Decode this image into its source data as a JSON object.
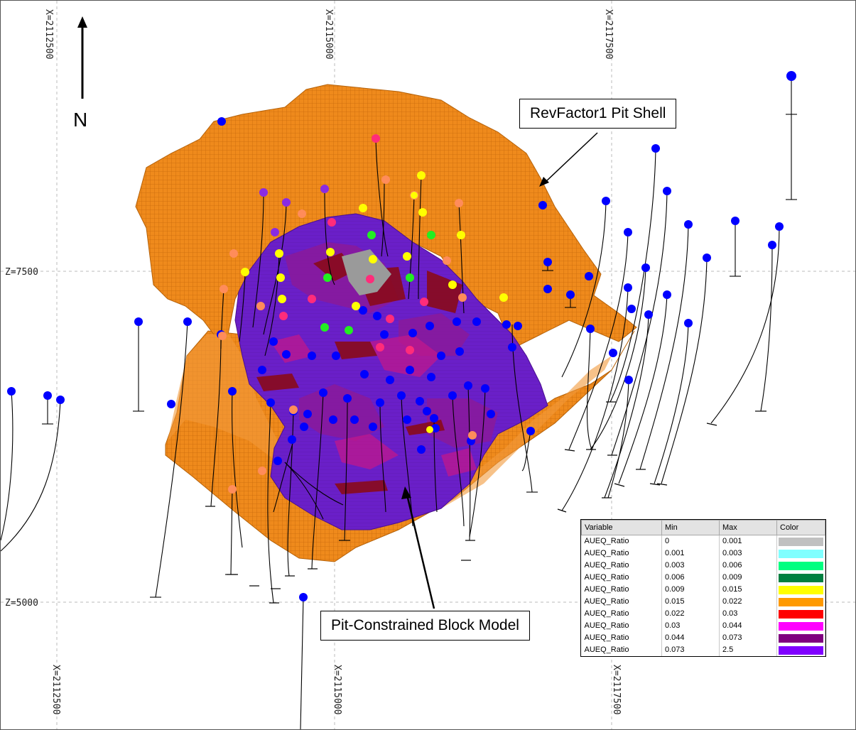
{
  "grid": {
    "x_labels_top": [
      "X=2112500",
      "X=2115000",
      "X=2117500"
    ],
    "x_labels_bottom": [
      "X=2112500",
      "X=2115000",
      "X=2117500"
    ],
    "z_labels": [
      "Z=7500",
      "Z=5000"
    ]
  },
  "north": {
    "label": "N"
  },
  "callouts": {
    "pit_shell": "RevFactor1 Pit Shell",
    "block_model": "Pit-Constrained Block Model"
  },
  "legend": {
    "headers": [
      "Variable",
      "Min",
      "Max",
      "Color"
    ],
    "rows": [
      {
        "variable": "AUEQ_Ratio",
        "min": "0",
        "max": "0.001",
        "color": "#c0c0c0"
      },
      {
        "variable": "AUEQ_Ratio",
        "min": "0.001",
        "max": "0.003",
        "color": "#80ffff"
      },
      {
        "variable": "AUEQ_Ratio",
        "min": "0.003",
        "max": "0.006",
        "color": "#00ff80"
      },
      {
        "variable": "AUEQ_Ratio",
        "min": "0.006",
        "max": "0.009",
        "color": "#008040"
      },
      {
        "variable": "AUEQ_Ratio",
        "min": "0.009",
        "max": "0.015",
        "color": "#ffff00"
      },
      {
        "variable": "AUEQ_Ratio",
        "min": "0.015",
        "max": "0.022",
        "color": "#ff9900"
      },
      {
        "variable": "AUEQ_Ratio",
        "min": "0.022",
        "max": "0.03",
        "color": "#ff0000"
      },
      {
        "variable": "AUEQ_Ratio",
        "min": "0.03",
        "max": "0.044",
        "color": "#ff00ff"
      },
      {
        "variable": "AUEQ_Ratio",
        "min": "0.044",
        "max": "0.073",
        "color": "#800080"
      },
      {
        "variable": "AUEQ_Ratio",
        "min": "0.073",
        "max": "2.5",
        "color": "#8000ff"
      }
    ]
  },
  "colors": {
    "pit_shell": "#ef8a1c",
    "pit_shell_dark": "#c96a0a",
    "block_main": "#6a1fc8",
    "block_purple": "#7a1a8a",
    "block_magenta": "#b01090",
    "block_red": "#8a0a1a",
    "drillhole_collar": "#0000ff",
    "trace": "#000000"
  }
}
